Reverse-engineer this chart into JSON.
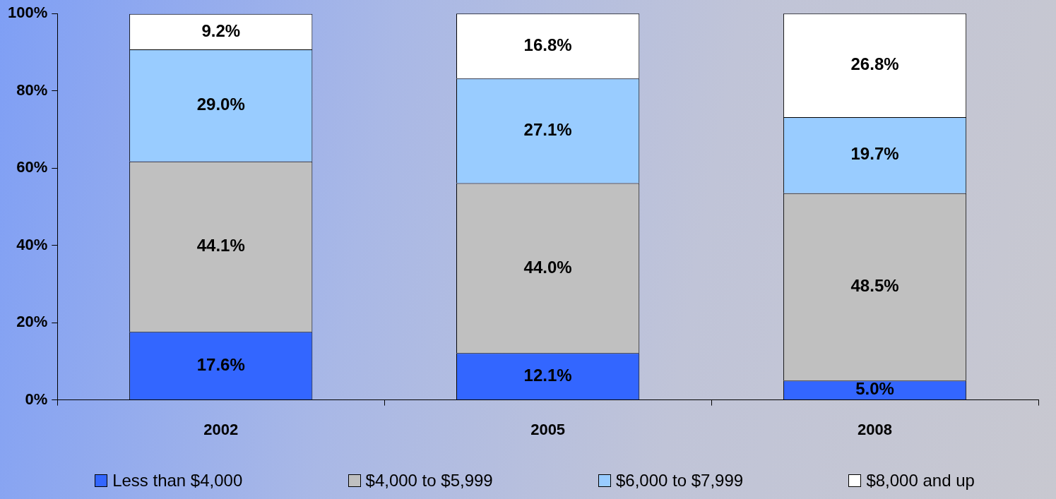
{
  "chart_data": {
    "type": "bar",
    "stacked": true,
    "categories": [
      "2002",
      "2005",
      "2008"
    ],
    "series": [
      {
        "name": "Less than $4,000",
        "color": "#3366ff",
        "values": [
          17.6,
          12.1,
          5.0
        ]
      },
      {
        "name": "$4,000 to $5,999",
        "color": "#c0c0c0",
        "values": [
          44.1,
          44.0,
          48.5
        ]
      },
      {
        "name": "$6,000 to $7,999",
        "color": "#99ccff",
        "values": [
          29.0,
          27.1,
          19.7
        ]
      },
      {
        "name": "$8,000 and up",
        "color": "#ffffff",
        "values": [
          9.2,
          16.8,
          26.8
        ]
      }
    ],
    "ylim": [
      0,
      100
    ],
    "yticks": [
      {
        "value": 0,
        "label": "0%"
      },
      {
        "value": 20,
        "label": "20%"
      },
      {
        "value": 40,
        "label": "40%"
      },
      {
        "value": 60,
        "label": "60%"
      },
      {
        "value": 80,
        "label": "80%"
      },
      {
        "value": 100,
        "label": "100%"
      }
    ],
    "value_labels": [
      [
        "17.6%",
        "12.1%",
        "5.0%"
      ],
      [
        "44.1%",
        "44.0%",
        "48.5%"
      ],
      [
        "29.0%",
        "27.1%",
        "19.7%"
      ],
      [
        "9.2%",
        "16.8%",
        "26.8%"
      ]
    ],
    "grid": false,
    "legend": "bottom"
  }
}
